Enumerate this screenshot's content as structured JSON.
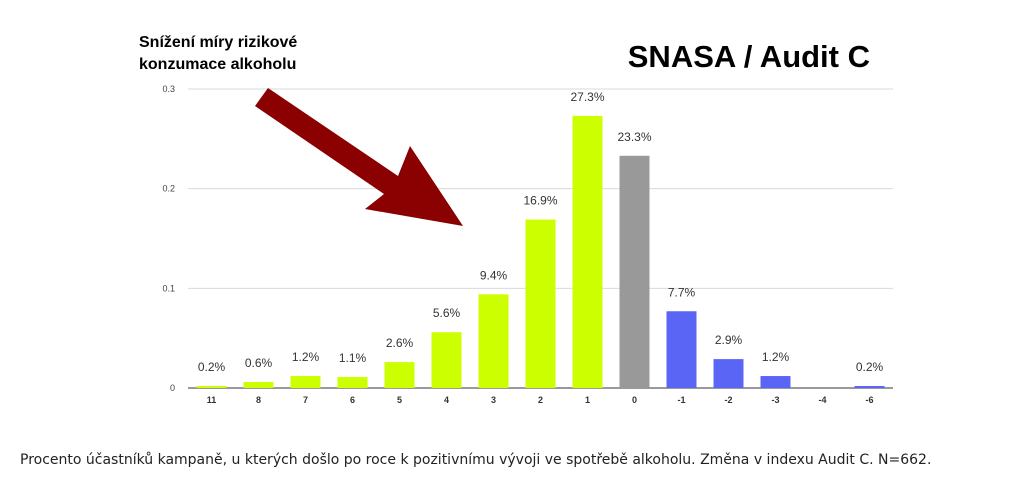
{
  "title": "SNASA / Audit C",
  "annotation": "Snížení míry rizikové konzumace alkoholu",
  "annotation_lines": [
    "Snížení míry rizikové",
    "konzumace alkoholu"
  ],
  "caption": "Procento účastníků kampaně, u kterých došlo po roce k pozitivnímu vývoji ve spotřebě alkoholu. Změna v indexu Audit C. N=662.",
  "colors": {
    "positive": "#ccff00",
    "neutral": "#999999",
    "negative": "#5b65f5",
    "arrow": "#8b0000",
    "grid": "#d9d9d9"
  },
  "chart_data": {
    "type": "bar",
    "title": "SNASA / Audit C",
    "categories": [
      "11",
      "8",
      "7",
      "6",
      "5",
      "4",
      "3",
      "2",
      "1",
      "0",
      "-1",
      "-2",
      "-3",
      "-4",
      "-6"
    ],
    "values": [
      0.002,
      0.006,
      0.012,
      0.011,
      0.026,
      0.056,
      0.094,
      0.169,
      0.273,
      0.233,
      0.077,
      0.029,
      0.012,
      0,
      0.002
    ],
    "data_labels": [
      "0.2%",
      "0.6%",
      "1.2%",
      "1.1%",
      "2.6%",
      "5.6%",
      "9.4%",
      "16.9%",
      "27.3%",
      "23.3%",
      "7.7%",
      "2.9%",
      "1.2%",
      "",
      "0.2%"
    ],
    "bar_color_groups": [
      "positive",
      "positive",
      "positive",
      "positive",
      "positive",
      "positive",
      "positive",
      "positive",
      "positive",
      "neutral",
      "negative",
      "negative",
      "negative",
      "negative",
      "negative"
    ],
    "yticks": [
      "0",
      "0.1",
      "0.2",
      "0.3"
    ],
    "ylim": [
      0,
      0.3
    ],
    "xlabel": "",
    "ylabel": "",
    "grid": true
  }
}
